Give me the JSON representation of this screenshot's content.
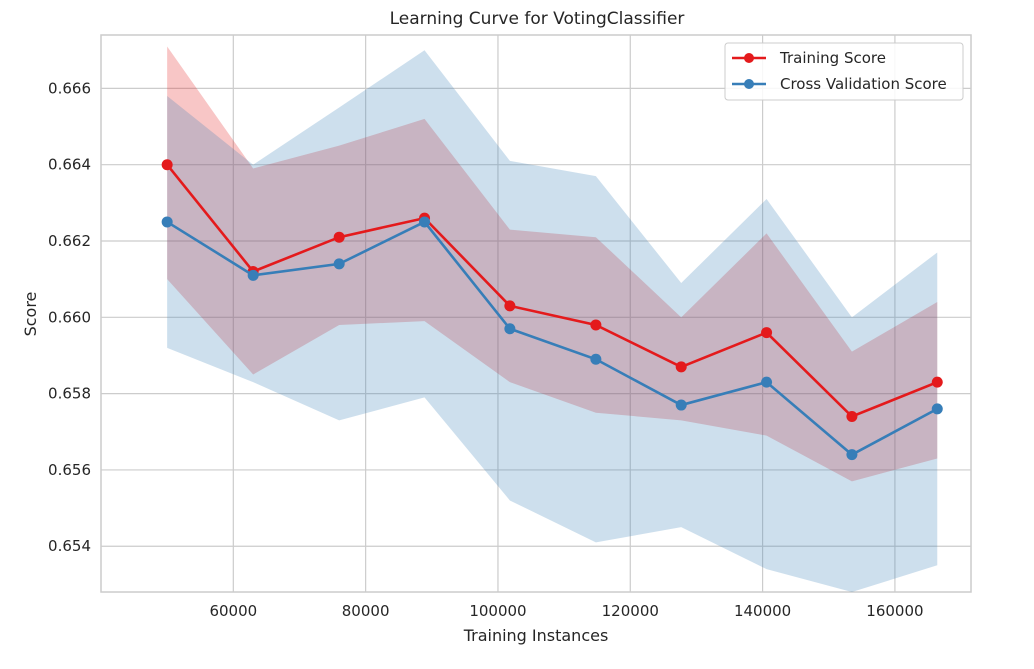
{
  "chart_data": {
    "type": "line",
    "title": "Learning Curve for VotingClassifier",
    "xlabel": "Training Instances",
    "ylabel": "Score",
    "xlim": [
      40000,
      171500
    ],
    "ylim": [
      0.6528,
      0.6674
    ],
    "xticks": [
      60000,
      80000,
      100000,
      120000,
      140000,
      160000
    ],
    "xtick_labels": [
      "60000",
      "80000",
      "100000",
      "120000",
      "140000",
      "160000"
    ],
    "yticks": [
      0.654,
      0.656,
      0.658,
      0.66,
      0.662,
      0.664,
      0.666
    ],
    "ytick_labels": [
      "0.654",
      "0.656",
      "0.658",
      "0.660",
      "0.662",
      "0.664",
      "0.666"
    ],
    "grid": true,
    "legend_position": "top-right",
    "x": [
      50000,
      63000,
      76000,
      88900,
      101800,
      114800,
      127700,
      140600,
      153500,
      166400
    ],
    "series": [
      {
        "name": "Training Score",
        "color": "#e41a1c",
        "values": [
          0.664,
          0.6612,
          0.6621,
          0.6626,
          0.6603,
          0.6598,
          0.6587,
          0.6596,
          0.6574,
          0.6583
        ],
        "band_lower": [
          0.661,
          0.6585,
          0.6598,
          0.6599,
          0.6583,
          0.6575,
          0.6573,
          0.6569,
          0.6557,
          0.6563
        ],
        "band_upper": [
          0.6671,
          0.6639,
          0.6645,
          0.6652,
          0.6623,
          0.6621,
          0.66,
          0.6622,
          0.6591,
          0.6604
        ]
      },
      {
        "name": "Cross Validation Score",
        "color": "#377eb8",
        "values": [
          0.6625,
          0.6611,
          0.6614,
          0.6625,
          0.6597,
          0.6589,
          0.6577,
          0.6583,
          0.6564,
          0.6576
        ],
        "band_lower": [
          0.6592,
          0.6583,
          0.6573,
          0.6579,
          0.6552,
          0.6541,
          0.6545,
          0.6534,
          0.6528,
          0.6535
        ],
        "band_upper": [
          0.6658,
          0.664,
          0.6655,
          0.667,
          0.6641,
          0.6637,
          0.6609,
          0.6631,
          0.66,
          0.6617
        ]
      }
    ]
  }
}
